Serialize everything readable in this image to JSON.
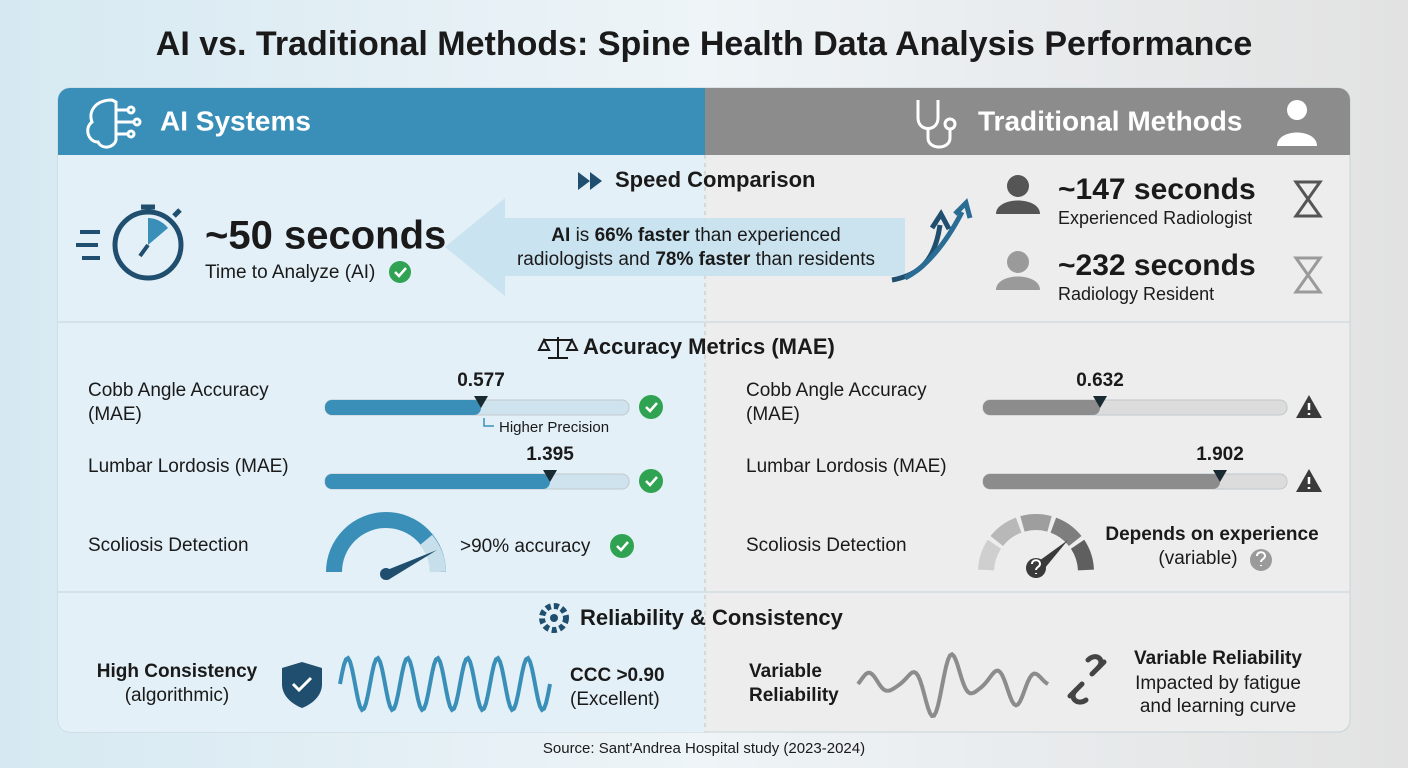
{
  "title": "AI vs. Traditional Methods: Spine Health Data Analysis Performance",
  "ai_header": "AI Systems",
  "traditional_header": "Traditional Methods",
  "speed": {
    "title": "Speed Comparison",
    "ai_time": "~50 seconds",
    "ai_caption": "Time to Analyze (AI)",
    "summary": [
      {
        "text": "AI",
        "bold": true
      },
      {
        "text": " is ",
        "bold": false
      },
      {
        "text": "66% faster",
        "bold": true
      },
      {
        "text": " than experienced",
        "bold": false
      },
      {
        "text": "radiologists and ",
        "bold": false,
        "newline": true
      },
      {
        "text": "78% faster",
        "bold": true
      },
      {
        "text": " than residents",
        "bold": false
      }
    ],
    "traditional": [
      {
        "time": "~147 seconds",
        "label": "Experienced Radiologist"
      },
      {
        "time": "~232 seconds",
        "label": "Radiology Resident"
      }
    ]
  },
  "accuracy": {
    "title": "Accuracy Metrics (MAE)",
    "ai": {
      "cobb_label": [
        "Cobb Angle Accuracy",
        "(MAE)"
      ],
      "cobb_value": 0.577,
      "cobb_note": "Higher Precision",
      "lumbar_label": "Lumbar Lordosis (MAE)",
      "lumbar_value": 1.395,
      "scoliosis_label": "Scoliosis Detection",
      "scoliosis_result": ">90% accuracy"
    },
    "traditional": {
      "cobb_label": [
        "Cobb Angle Accuracy",
        "(MAE)"
      ],
      "cobb_value": 0.632,
      "lumbar_label": "Lumbar Lordosis (MAE)",
      "lumbar_value": 1.902,
      "scoliosis_label": "Scoliosis Detection",
      "scoliosis_result": [
        "Depends on experience",
        "(variable)"
      ]
    }
  },
  "reliability": {
    "title": "Reliability & Consistency",
    "ai_label": [
      "High Consistency",
      "(algorithmic)"
    ],
    "ai_metric": [
      "CCC >0.90",
      "(Excellent)"
    ],
    "traditional_label": [
      "Variable",
      "Reliability"
    ],
    "traditional_note": [
      "Variable Reliability",
      "Impacted by fatigue",
      "and learning curve"
    ]
  },
  "source": "Source: Sant'Andrea Hospital study (2023-2024)"
}
